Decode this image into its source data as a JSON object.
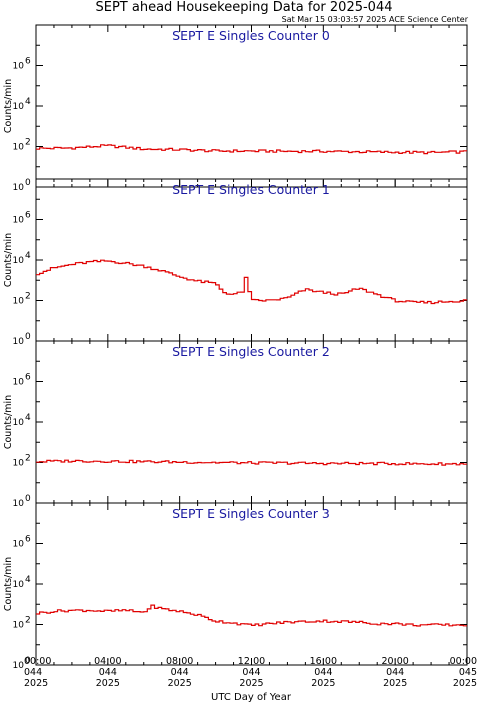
{
  "title": "SEPT ahead Housekeeping Data for 2025-044",
  "timestamp": "Sat Mar 15 03:03:57 2025 ACE Science Center",
  "chart_data": {
    "type": "line",
    "xlabel": "UTC Day of Year",
    "ylabel": "Counts/min",
    "yscale": "log",
    "ylim": [
      1,
      100000000
    ],
    "xlim": [
      0,
      24
    ],
    "y_ticks": [
      {
        "base": "10",
        "exp": "0"
      },
      {
        "base": "10",
        "exp": "2"
      },
      {
        "base": "10",
        "exp": "4"
      },
      {
        "base": "10",
        "exp": "6"
      }
    ],
    "x_ticks": [
      {
        "time": "00:00",
        "doy": "044",
        "year": "2025"
      },
      {
        "time": "04:00",
        "doy": "044",
        "year": "2025"
      },
      {
        "time": "08:00",
        "doy": "044",
        "year": "2025"
      },
      {
        "time": "12:00",
        "doy": "044",
        "year": "2025"
      },
      {
        "time": "16:00",
        "doy": "044",
        "year": "2025"
      },
      {
        "time": "20:00",
        "doy": "044",
        "year": "2025"
      },
      {
        "time": "00:00",
        "doy": "045",
        "year": "2025"
      }
    ],
    "line_color": "#e00000",
    "panels": [
      {
        "name": "SEPT E Singles Counter 0",
        "x": [
          0,
          2,
          4,
          6,
          8,
          10,
          12,
          14,
          16,
          18,
          20,
          22,
          24
        ],
        "y": [
          80,
          85,
          110,
          75,
          70,
          60,
          60,
          58,
          58,
          55,
          52,
          50,
          55
        ]
      },
      {
        "name": "SEPT E Singles Counter 1",
        "x": [
          0,
          1,
          2,
          3,
          4,
          5,
          6,
          7,
          8,
          9,
          10,
          10.5,
          11,
          11.5,
          11.7,
          12,
          13,
          14,
          15,
          16,
          17,
          18,
          19,
          20,
          21,
          22,
          23,
          24
        ],
        "y": [
          2000,
          4000,
          6000,
          8000,
          9000,
          7000,
          5000,
          3000,
          1500,
          900,
          700,
          250,
          200,
          250,
          1500,
          100,
          100,
          130,
          350,
          250,
          200,
          400,
          200,
          100,
          80,
          80,
          90,
          100
        ]
      },
      {
        "name": "SEPT E Singles Counter 2",
        "x": [
          0,
          2,
          4,
          6,
          8,
          10,
          12,
          14,
          16,
          18,
          20,
          22,
          24
        ],
        "y": [
          110,
          120,
          115,
          110,
          105,
          100,
          95,
          95,
          90,
          90,
          88,
          85,
          85
        ]
      },
      {
        "name": "SEPT E Singles Counter 3",
        "x": [
          0,
          1,
          2,
          3,
          4,
          5,
          6,
          6.5,
          7,
          8,
          9,
          10,
          11,
          12,
          13,
          14,
          15,
          16,
          17,
          18,
          19,
          20,
          21,
          22,
          23,
          24
        ],
        "y": [
          350,
          450,
          500,
          500,
          450,
          500,
          400,
          800,
          600,
          450,
          300,
          150,
          120,
          90,
          110,
          130,
          140,
          150,
          140,
          130,
          110,
          110,
          95,
          95,
          95,
          95
        ]
      }
    ]
  }
}
